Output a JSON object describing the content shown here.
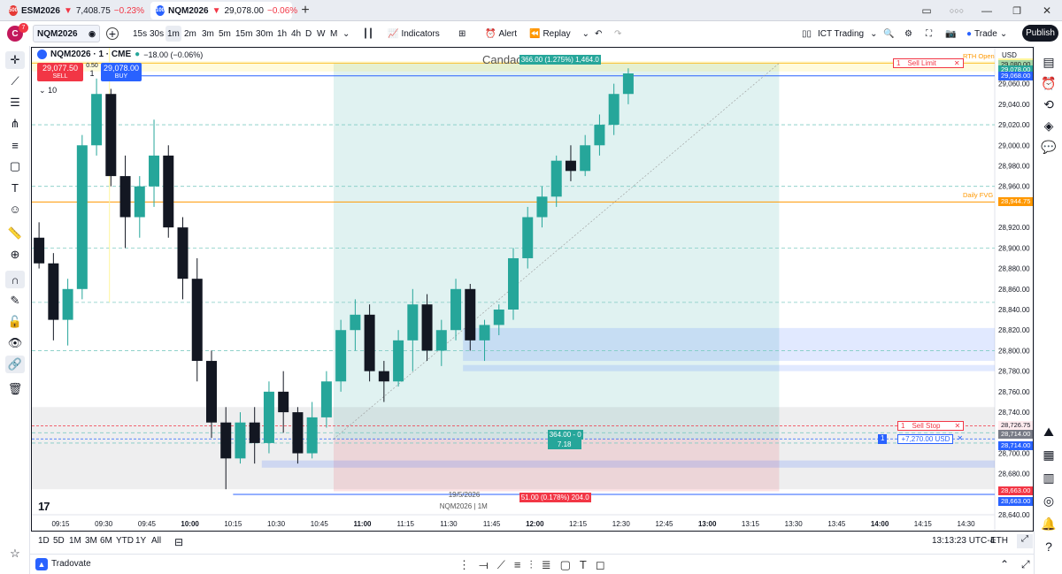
{
  "tabs": [
    {
      "symbol": "ESM2026",
      "arrow": "▼",
      "price": "7,408.75",
      "change": "−0.23%",
      "badge": "500",
      "badge_color": "#e53935"
    },
    {
      "symbol": "NQM2026",
      "arrow": "▼",
      "price": "29,078.00",
      "change": "−0.06%",
      "badge": "100",
      "badge_color": "#2962ff"
    }
  ],
  "new_tab": "+",
  "toolbar": {
    "avatar": "C",
    "notif_count": "7",
    "symbol": "NQM2026",
    "add": "+",
    "intervals": [
      "15s",
      "30s",
      "1m",
      "2m",
      "3m",
      "5m",
      "15m",
      "30m",
      "1h",
      "4h",
      "D",
      "W",
      "M"
    ],
    "selected_interval": "1m",
    "indicators": "Indicators",
    "alert": "Alert",
    "replay": "Replay",
    "layout_name": "ICT Trading",
    "trade": "Trade",
    "publish": "Publish"
  },
  "legend": {
    "title": "NQM2026 · 1 · CME",
    "change": "−18.00 (−0.06%)",
    "sell_price": "29,077.50",
    "sell_label": "SELL",
    "spread": "0.50",
    "qty": "1",
    "buy_price": "29,078.00",
    "buy_label": "BUY",
    "collapse": "10"
  },
  "watermark": "Candace Lau",
  "currency": "USD",
  "chart_data": {
    "type": "candlestick",
    "y_range": [
      28630,
      29095
    ],
    "x_range": [
      "09:05",
      "14:40"
    ],
    "time_ticks": [
      "09:15",
      "09:30",
      "09:45",
      "10:00",
      "10:15",
      "10:30",
      "10:45",
      "11:00",
      "11:15",
      "11:30",
      "11:45",
      "12:00",
      "12:15",
      "12:30",
      "12:45",
      "13:00",
      "13:15",
      "13:30",
      "13:45",
      "14:00",
      "14:15",
      "14:30"
    ],
    "bold_time_ticks": [
      "10:00",
      "11:00",
      "12:00",
      "13:00",
      "14:00"
    ],
    "price_ticks": [
      "29,060.00",
      "29,040.00",
      "29,020.00",
      "29,000.00",
      "28,980.00",
      "28,960.00",
      "28,920.00",
      "28,900.00",
      "28,880.00",
      "28,860.00",
      "28,840.00",
      "28,820.00",
      "28,800.00",
      "28,780.00",
      "28,760.00",
      "28,740.00",
      "28,700.00",
      "28,680.00",
      "28,640.00"
    ],
    "price_labels": [
      {
        "text": "29,080.00",
        "price": 29080,
        "bg": "#fff59d"
      },
      {
        "text": "29,080.00",
        "price": 29078.8,
        "bg": "#a5d6a7"
      },
      {
        "text": "29,078.00",
        "price": 29073.2,
        "bg": "#26a69a"
      },
      {
        "text": "29,068.00",
        "price": 29067.6,
        "bg": "#2962ff"
      },
      {
        "text": "28,944.75",
        "price": 28944.75,
        "bg": "#ff9800"
      },
      {
        "text": "28,726.75",
        "price": 28726.75,
        "bg": "#ffebee"
      },
      {
        "text": "28,714.00",
        "price": 28718.5,
        "bg": "#787b86"
      },
      {
        "text": "28,714.00",
        "price": 28707,
        "bg": "#2962ff"
      },
      {
        "text": "28,663.00",
        "price": 28663,
        "bg": "#f23645"
      },
      {
        "text": "28,663.00",
        "price": 28653,
        "bg": "#2962ff"
      }
    ],
    "candles_5m_ohlc": [
      [
        28910,
        28925,
        28880,
        28885
      ],
      [
        28885,
        28895,
        28810,
        28830
      ],
      [
        28830,
        28870,
        28805,
        28860
      ],
      [
        28860,
        29010,
        28850,
        29000
      ],
      [
        29000,
        29065,
        28990,
        29050
      ],
      [
        29050,
        29055,
        28960,
        28970
      ],
      [
        28970,
        28990,
        28900,
        28930
      ],
      [
        28930,
        28970,
        28910,
        28960
      ],
      [
        28960,
        29025,
        28940,
        28990
      ],
      [
        28990,
        29000,
        28910,
        28920
      ],
      [
        28920,
        28930,
        28850,
        28870
      ],
      [
        28870,
        28890,
        28770,
        28790
      ],
      [
        28790,
        28800,
        28715,
        28730
      ],
      [
        28730,
        28745,
        28665,
        28695
      ],
      [
        28695,
        28740,
        28690,
        28730
      ],
      [
        28730,
        28745,
        28690,
        28710
      ],
      [
        28710,
        28770,
        28700,
        28760
      ],
      [
        28760,
        28780,
        28720,
        28740
      ],
      [
        28740,
        28745,
        28690,
        28700
      ],
      [
        28700,
        28750,
        28695,
        28735
      ],
      [
        28735,
        28780,
        28725,
        28770
      ],
      [
        28770,
        28830,
        28760,
        28820
      ],
      [
        28820,
        28850,
        28800,
        28835
      ],
      [
        28835,
        28845,
        28770,
        28780
      ],
      [
        28780,
        28790,
        28750,
        28770
      ],
      [
        28770,
        28820,
        28765,
        28810
      ],
      [
        28810,
        28860,
        28780,
        28845
      ],
      [
        28845,
        28855,
        28790,
        28800
      ],
      [
        28800,
        28830,
        28785,
        28820
      ],
      [
        28820,
        28870,
        28810,
        28860
      ],
      [
        28860,
        28865,
        28800,
        28810
      ],
      [
        28810,
        28830,
        28790,
        28825
      ],
      [
        28825,
        28845,
        28815,
        28840
      ],
      [
        28840,
        28900,
        28830,
        28890
      ],
      [
        28890,
        28940,
        28880,
        28930
      ],
      [
        28930,
        28960,
        28920,
        28950
      ],
      [
        28950,
        28990,
        28940,
        28985
      ],
      [
        28985,
        29000,
        28965,
        28975
      ],
      [
        28975,
        29010,
        28970,
        29000
      ],
      [
        29000,
        29030,
        28990,
        29020
      ],
      [
        29020,
        29060,
        29010,
        29050
      ],
      [
        29050,
        29075,
        29040,
        29070
      ]
    ],
    "order_lines": [
      {
        "type": "Sell Limit",
        "qty": "1",
        "price": 29080
      },
      {
        "type": "Sell Stop",
        "qty": "1",
        "price": 28726.75
      },
      {
        "type": "position",
        "qty": "1",
        "pnl": "+7,270.00 USD",
        "price": 28714
      }
    ],
    "annotations": [
      {
        "text": "RTH Open",
        "price": 29080
      },
      {
        "text": "Daily FVG",
        "price": 28944.75
      }
    ],
    "position_tool": {
      "target": "366.00 (1.275%) 1,464.0",
      "center_top": "364.00 - 0",
      "center_bottom": "7.18",
      "stop": "51.00 (0.178%) 204.0",
      "tooltip_date": "19/5/2026",
      "tooltip_sub": "NQM2026 | 1M"
    }
  },
  "bottom": {
    "ranges": [
      "1D",
      "5D",
      "1M",
      "3M",
      "6M",
      "YTD",
      "1Y",
      "All"
    ],
    "clock": "13:13:23 UTC-4",
    "session": "ETH"
  },
  "footer": {
    "broker": "Tradovate"
  }
}
